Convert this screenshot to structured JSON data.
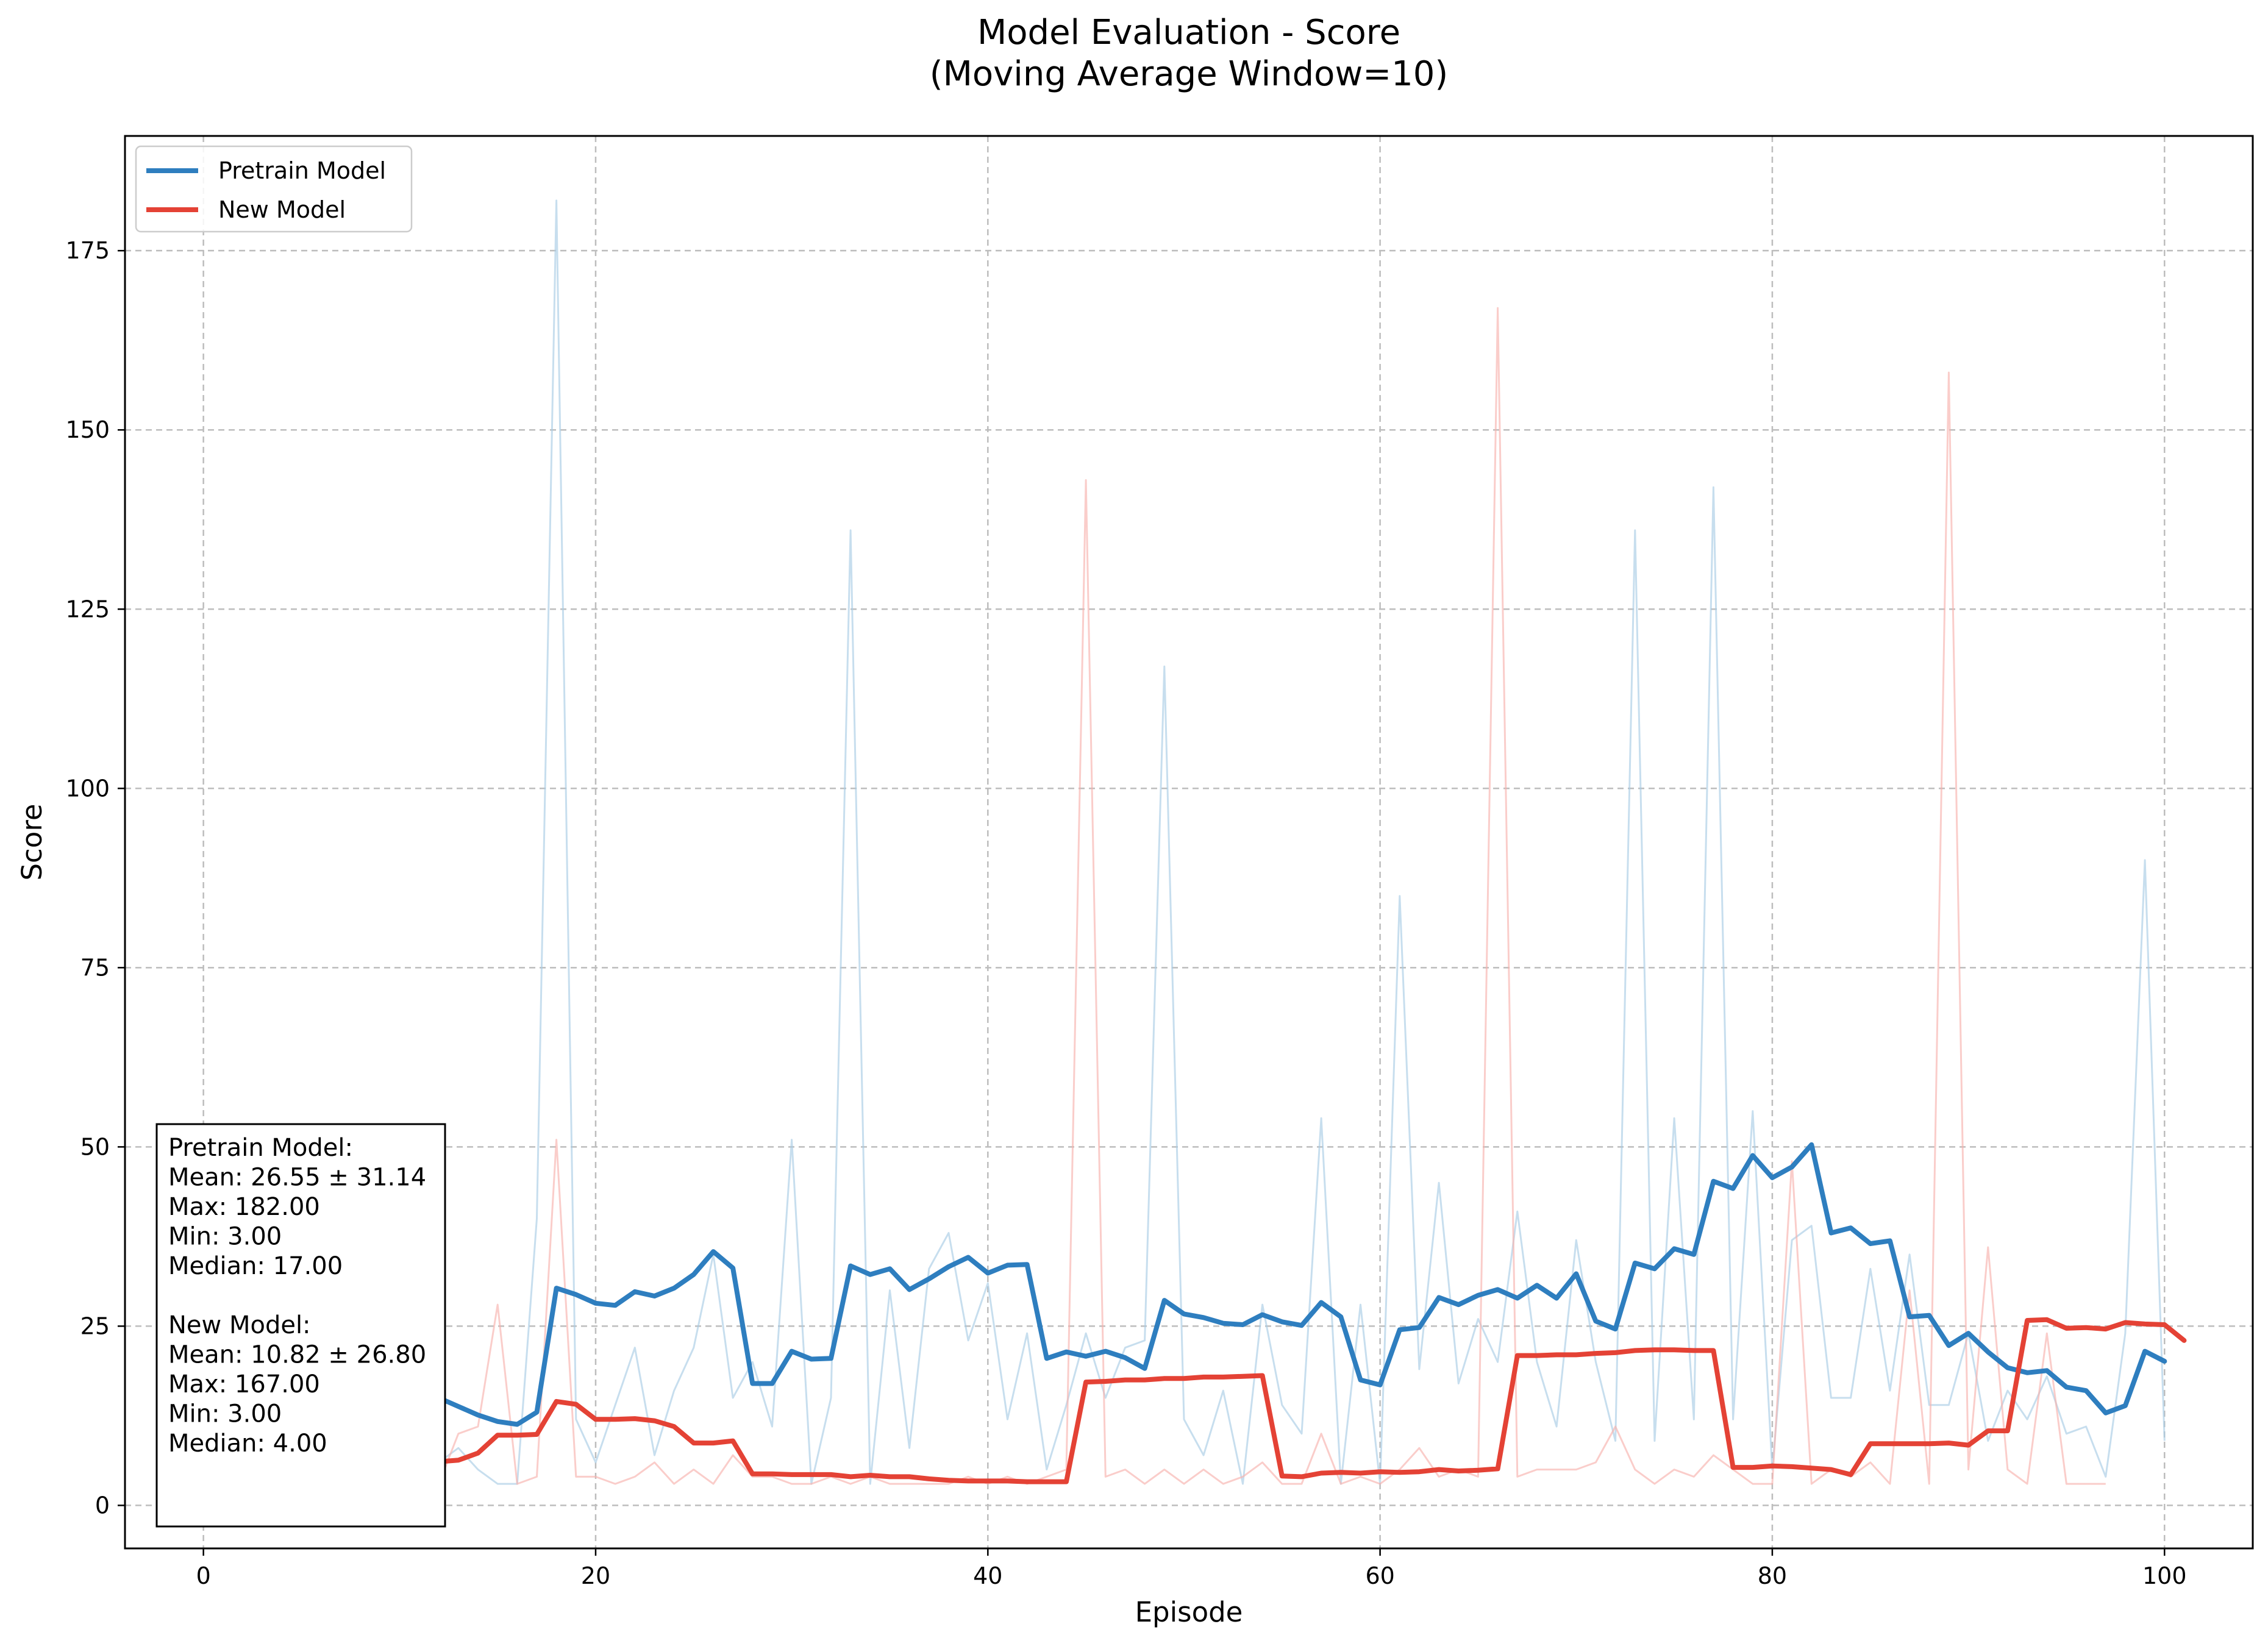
{
  "chart_data": {
    "type": "line",
    "title": "Model Evaluation - Score",
    "subtitle": "(Moving Average Window=10)",
    "xlabel": "Episode",
    "ylabel": "Score",
    "xlim": [
      -4,
      104.5
    ],
    "ylim": [
      -6,
      191
    ],
    "x_ticks": [
      0,
      20,
      40,
      60,
      80,
      100
    ],
    "y_ticks": [
      0,
      25,
      50,
      75,
      100,
      125,
      150,
      175
    ],
    "grid": true,
    "legend_position": "top-left",
    "series": [
      {
        "name": "Pretrain Model",
        "color": "#2e7ebf",
        "raw_x_start": 0,
        "raw_values": [
          31,
          4,
          5,
          4,
          4,
          4,
          3,
          3,
          4,
          9,
          21,
          3,
          6,
          8,
          5,
          3,
          3,
          40,
          182,
          12,
          6,
          14,
          22,
          7,
          16,
          22,
          35,
          15,
          20,
          11,
          51,
          3,
          15,
          136,
          3,
          30,
          8,
          33,
          38,
          23,
          31,
          12,
          24,
          5,
          14,
          24,
          15,
          22,
          23,
          117,
          12,
          7,
          16,
          3,
          28,
          14,
          10,
          54,
          3,
          28,
          3,
          85,
          19,
          45,
          17,
          26,
          20,
          41,
          20,
          11,
          37,
          20,
          9,
          136,
          9,
          54,
          12,
          142,
          12,
          55,
          5,
          37,
          39,
          15,
          15,
          33,
          16,
          35,
          14,
          14,
          24,
          9,
          16,
          12,
          18,
          10,
          11,
          4,
          24,
          90,
          9
        ],
        "ma_x_start": 10,
        "ma_values": [
          17.5,
          18.3,
          15.0,
          13.8,
          12.6,
          11.7,
          11.3,
          13.0,
          30.3,
          29.4,
          28.2,
          27.9,
          29.8,
          29.2,
          30.3,
          32.2,
          35.4,
          33.1,
          17.0,
          17.0,
          21.5,
          20.4,
          20.5,
          33.4,
          32.2,
          33.0,
          30.1,
          31.6,
          33.3,
          34.6,
          32.4,
          33.5,
          33.6,
          20.5,
          21.4,
          20.8,
          21.5,
          20.6,
          19.1,
          28.6,
          26.7,
          26.2,
          25.4,
          25.2,
          26.6,
          25.6,
          25.1,
          28.3,
          26.3,
          17.5,
          16.8,
          24.5,
          24.8,
          29.0,
          28.0,
          29.3,
          30.1,
          28.9,
          30.7,
          28.9,
          32.3,
          25.7,
          24.6,
          33.8,
          33.0,
          35.8,
          35.0,
          45.2,
          44.2,
          48.8,
          45.7,
          47.2,
          50.3,
          38.0,
          38.7,
          36.5,
          36.9,
          26.3,
          26.5,
          22.3,
          24.0,
          21.4,
          19.2,
          18.5,
          18.8,
          16.5,
          16.0,
          12.9,
          13.9,
          21.5,
          20.1
        ]
      },
      {
        "name": "New Model",
        "color": "#e44235",
        "raw_x_start": 10,
        "raw_values": [
          4,
          3,
          3,
          10,
          11,
          28,
          3,
          4,
          51,
          4,
          4,
          3,
          4,
          6,
          3,
          5,
          3,
          7,
          4,
          4,
          3,
          3,
          4,
          3,
          4,
          3,
          3,
          3,
          3,
          4,
          3,
          4,
          3,
          4,
          5,
          143,
          4,
          5,
          3,
          5,
          3,
          5,
          3,
          4,
          6,
          3,
          3,
          10,
          3,
          4,
          3,
          5,
          8,
          4,
          5,
          4,
          167,
          4,
          5,
          5,
          5,
          6,
          11,
          5,
          3,
          5,
          4,
          7,
          5,
          3,
          3,
          48,
          3,
          5,
          4,
          6,
          3,
          30,
          3,
          158,
          5,
          36,
          5,
          3,
          24,
          3,
          3,
          3
        ],
        "ma_x_start": 10,
        "ma_values": [
          6.4,
          6.3,
          6.1,
          6.3,
          7.3,
          9.8,
          9.8,
          9.9,
          14.5,
          14.1,
          12.0,
          12.0,
          12.1,
          11.8,
          11.0,
          8.7,
          8.7,
          9.0,
          4.4,
          4.4,
          4.3,
          4.3,
          4.3,
          4.0,
          4.2,
          4.0,
          4.0,
          3.7,
          3.5,
          3.4,
          3.4,
          3.4,
          3.3,
          3.3,
          3.3,
          17.2,
          17.3,
          17.5,
          17.5,
          17.7,
          17.7,
          17.9,
          17.9,
          18.0,
          18.1,
          4.1,
          4.0,
          4.5,
          4.6,
          4.5,
          4.7,
          4.6,
          4.7,
          5.0,
          4.8,
          4.9,
          5.1,
          20.9,
          20.9,
          21.0,
          21.0,
          21.2,
          21.3,
          21.6,
          21.7,
          21.7,
          21.6,
          21.6,
          5.3,
          5.3,
          5.5,
          5.4,
          5.2,
          5.0,
          4.3,
          8.6,
          8.6,
          8.6,
          8.6,
          8.7,
          8.4,
          10.4,
          10.4,
          25.8,
          25.9,
          24.7,
          24.8,
          24.6,
          25.5,
          25.3,
          25.2,
          23.0
        ]
      }
    ],
    "stats_box": [
      "Pretrain Model:",
      "Mean: 26.55 ± 31.14",
      "Max: 182.00",
      "Min: 3.00",
      "Median: 17.00",
      "",
      "New Model:",
      "Mean: 10.82 ± 26.80",
      "Max: 167.00",
      "Min: 3.00",
      "Median: 4.00"
    ]
  }
}
